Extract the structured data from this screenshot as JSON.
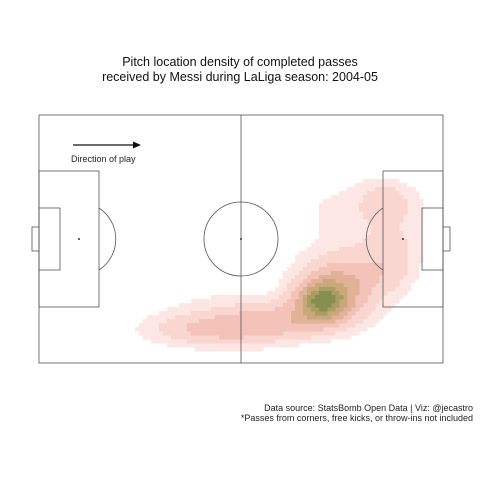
{
  "chart_data": {
    "type": "heatmap",
    "title_line1": "Pitch location density of completed passes",
    "title_line2": "received by Messi during LaLiga season: 2004-05",
    "direction_label": "Direction of play",
    "source_note": "Data source: StatsBomb Open Data | Viz: @jecastro",
    "footnote": "*Passes from corners, free kicks, or throw-ins not included",
    "pitch": {
      "length": 120,
      "width": 80
    },
    "density_kernels": [
      {
        "x": 84,
        "y": 60,
        "weight": 1.0,
        "sx": 5,
        "sy": 4
      },
      {
        "x": 88,
        "y": 56,
        "weight": 0.6,
        "sx": 8,
        "sy": 7
      },
      {
        "x": 73,
        "y": 66,
        "weight": 0.42,
        "sx": 12,
        "sy": 4
      },
      {
        "x": 58,
        "y": 69,
        "weight": 0.32,
        "sx": 12,
        "sy": 4
      },
      {
        "x": 45,
        "y": 69,
        "weight": 0.22,
        "sx": 11,
        "sy": 3.5
      },
      {
        "x": 105,
        "y": 46,
        "weight": 0.22,
        "sx": 5,
        "sy": 7
      },
      {
        "x": 103,
        "y": 28,
        "weight": 0.26,
        "sx": 5,
        "sy": 4
      },
      {
        "x": 96,
        "y": 52,
        "weight": 0.16,
        "sx": 8,
        "sy": 6
      },
      {
        "x": 90,
        "y": 30,
        "weight": 0.08,
        "sx": 22,
        "sy": 8
      },
      {
        "x": 100,
        "y": 38,
        "weight": 0.1,
        "sx": 10,
        "sy": 10
      },
      {
        "x": 52,
        "y": 60,
        "weight": 0.07,
        "sx": 12,
        "sy": 5
      }
    ],
    "contour_levels": [
      0.06,
      0.14,
      0.26,
      0.4,
      0.55,
      0.72,
      0.86
    ],
    "contour_colors": [
      "#fde3e0",
      "#f9cfc8",
      "#f2b9ad",
      "#dca585",
      "#c29a66",
      "#9b8c47",
      "#727c32"
    ],
    "grid": false,
    "legend": "none"
  }
}
